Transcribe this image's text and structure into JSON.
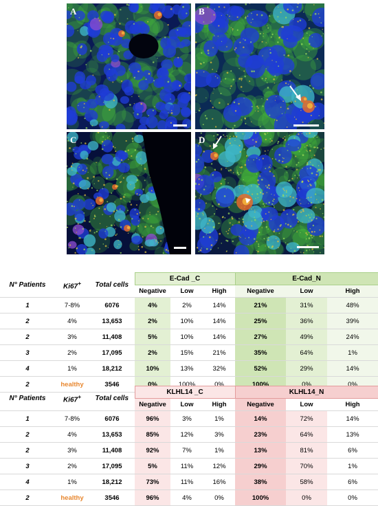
{
  "figure": {
    "panels": [
      {
        "label": "A"
      },
      {
        "label": "B"
      },
      {
        "label": "C"
      },
      {
        "label": "D"
      }
    ],
    "colors": {
      "nuclei": "#1f3cd6",
      "cytoplasm": "#44b23a",
      "signal": "#e56b2b",
      "arrow": "#ffffff"
    }
  },
  "table_ecad": {
    "headers": {
      "patients": "N° Patients",
      "ki67": "Ki67",
      "ki67_sup": "+",
      "total": "Total cells"
    },
    "group_c": "E-Cad _C",
    "group_n": "E-Cad_N",
    "subheaders": [
      "Negative",
      "Low",
      "High",
      "Negative",
      "Low",
      "High"
    ],
    "rows": [
      {
        "patients": "1",
        "ki67": "7-8%",
        "total": "6076",
        "c": [
          "4%",
          "2%",
          "14%"
        ],
        "n": [
          "21%",
          "31%",
          "48%"
        ]
      },
      {
        "patients": "2",
        "ki67": "4%",
        "total": "13,653",
        "c": [
          "2%",
          "10%",
          "14%"
        ],
        "n": [
          "25%",
          "36%",
          "39%"
        ]
      },
      {
        "patients": "2",
        "ki67": "3%",
        "total": "11,408",
        "c": [
          "5%",
          "10%",
          "14%"
        ],
        "n": [
          "27%",
          "49%",
          "24%"
        ]
      },
      {
        "patients": "3",
        "ki67": "2%",
        "total": "17,095",
        "c": [
          "2%",
          "15%",
          "21%"
        ],
        "n": [
          "35%",
          "64%",
          "1%"
        ]
      },
      {
        "patients": "4",
        "ki67": "1%",
        "total": "18,212",
        "c": [
          "10%",
          "13%",
          "32%"
        ],
        "n": [
          "52%",
          "29%",
          "14%"
        ]
      },
      {
        "patients": "2",
        "ki67": "healthy",
        "total": "3546",
        "c": [
          "0%",
          "100%",
          "0%"
        ],
        "n": [
          "100%",
          "0%",
          "0%"
        ]
      }
    ]
  },
  "table_klhl": {
    "headers": {
      "patients": "N° Patients",
      "ki67": "Ki67",
      "ki67_sup": "+",
      "total": "Total cells"
    },
    "group_c": "KLHL14 _C",
    "group_n": "KLHL14_N",
    "subheaders": [
      "Negative",
      "Low",
      "High",
      "Negative",
      "Low",
      "High"
    ],
    "rows": [
      {
        "patients": "1",
        "ki67": "7-8%",
        "total": "6076",
        "c": [
          "96%",
          "3%",
          "1%"
        ],
        "n": [
          "14%",
          "72%",
          "14%"
        ]
      },
      {
        "patients": "2",
        "ki67": "4%",
        "total": "13,653",
        "c": [
          "85%",
          "12%",
          "3%"
        ],
        "n": [
          "23%",
          "64%",
          "13%"
        ]
      },
      {
        "patients": "2",
        "ki67": "3%",
        "total": "11,408",
        "c": [
          "92%",
          "7%",
          "1%"
        ],
        "n": [
          "13%",
          "81%",
          "6%"
        ]
      },
      {
        "patients": "3",
        "ki67": "2%",
        "total": "17,095",
        "c": [
          "5%",
          "11%",
          "12%"
        ],
        "n": [
          "29%",
          "70%",
          "1%"
        ]
      },
      {
        "patients": "4",
        "ki67": "1%",
        "total": "18,212",
        "c": [
          "73%",
          "11%",
          "16%"
        ],
        "n": [
          "38%",
          "58%",
          "6%"
        ]
      },
      {
        "patients": "2",
        "ki67": "healthy",
        "total": "3546",
        "c": [
          "96%",
          "4%",
          "0%"
        ],
        "n": [
          "100%",
          "0%",
          "0%"
        ]
      }
    ]
  }
}
